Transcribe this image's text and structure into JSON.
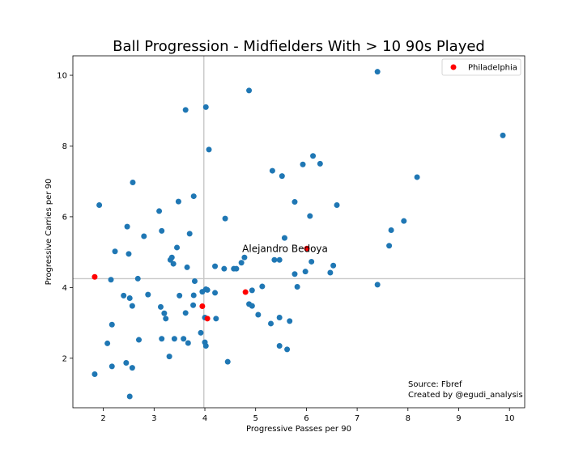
{
  "chart_data": {
    "type": "scatter",
    "title": "Ball Progression - Midfielders With > 10 90s Played",
    "xlabel": "Progressive Passes per 90",
    "ylabel": "Progressive Carries per 90",
    "xlim": [
      1.4,
      10.3
    ],
    "ylim": [
      0.6,
      10.55
    ],
    "xticks": [
      2,
      3,
      4,
      5,
      6,
      7,
      8,
      9,
      10
    ],
    "yticks": [
      2,
      4,
      6,
      8,
      10
    ],
    "grid": false,
    "reference_lines": {
      "x": 3.98,
      "y": 4.25
    },
    "legend": {
      "position": "top-right",
      "entries": [
        "Philadelphia"
      ]
    },
    "colors": {
      "others": "#1f77b4",
      "philadelphia": "#ff0000",
      "reference_line": "#c8c8c8"
    },
    "annotation": {
      "text": "Alejandro Bedoya",
      "x": 6.01,
      "y": 5.1
    },
    "source_lines": [
      "Source: Fbref",
      "Created by @egudi_analysis"
    ],
    "series": [
      {
        "points": [
          [
            1.92,
            6.33
          ],
          [
            2.15,
            4.22
          ],
          [
            2.23,
            5.02
          ],
          [
            2.47,
            5.72
          ],
          [
            2.5,
            4.95
          ],
          [
            2.58,
            6.97
          ],
          [
            2.8,
            5.45
          ],
          [
            2.68,
            4.25
          ],
          [
            3.1,
            6.16
          ],
          [
            3.15,
            5.6
          ],
          [
            3.32,
            4.78
          ],
          [
            3.35,
            4.85
          ],
          [
            3.38,
            4.67
          ],
          [
            3.45,
            5.13
          ],
          [
            3.48,
            6.43
          ],
          [
            3.7,
            5.52
          ],
          [
            3.78,
            6.58
          ],
          [
            3.65,
            4.57
          ],
          [
            3.62,
            9.02
          ],
          [
            4.02,
            9.1
          ],
          [
            4.08,
            7.9
          ],
          [
            4.4,
            5.95
          ],
          [
            4.2,
            4.6
          ],
          [
            4.38,
            4.53
          ],
          [
            4.57,
            4.53
          ],
          [
            4.62,
            4.53
          ],
          [
            4.72,
            4.7
          ],
          [
            4.78,
            4.85
          ],
          [
            4.87,
            9.57
          ],
          [
            5.33,
            7.3
          ],
          [
            5.52,
            7.15
          ],
          [
            5.37,
            4.78
          ],
          [
            5.47,
            4.78
          ],
          [
            5.57,
            5.4
          ],
          [
            5.77,
            6.42
          ],
          [
            5.93,
            7.48
          ],
          [
            6.07,
            6.02
          ],
          [
            6.13,
            7.72
          ],
          [
            6.27,
            7.5
          ],
          [
            6.1,
            4.73
          ],
          [
            5.98,
            4.45
          ],
          [
            5.77,
            4.38
          ],
          [
            5.82,
            4.02
          ],
          [
            6.47,
            4.42
          ],
          [
            6.53,
            4.62
          ],
          [
            6.6,
            6.33
          ],
          [
            7.4,
            10.1
          ],
          [
            7.4,
            4.08
          ],
          [
            7.63,
            5.18
          ],
          [
            7.67,
            5.62
          ],
          [
            7.92,
            5.88
          ],
          [
            8.18,
            7.12
          ],
          [
            9.87,
            8.3
          ],
          [
            2.4,
            3.77
          ],
          [
            2.52,
            3.7
          ],
          [
            2.57,
            3.48
          ],
          [
            2.88,
            3.8
          ],
          [
            3.13,
            3.45
          ],
          [
            3.2,
            3.27
          ],
          [
            3.23,
            3.12
          ],
          [
            3.5,
            3.77
          ],
          [
            3.62,
            3.28
          ],
          [
            3.78,
            3.78
          ],
          [
            3.8,
            4.18
          ],
          [
            3.77,
            3.5
          ],
          [
            3.95,
            3.88
          ],
          [
            4.02,
            3.95
          ],
          [
            4.05,
            3.93
          ],
          [
            4.2,
            3.85
          ],
          [
            4.0,
            3.15
          ],
          [
            4.22,
            3.12
          ],
          [
            3.92,
            2.72
          ],
          [
            4.0,
            2.45
          ],
          [
            4.02,
            2.35
          ],
          [
            3.58,
            2.55
          ],
          [
            3.67,
            2.43
          ],
          [
            3.4,
            2.55
          ],
          [
            3.15,
            2.55
          ],
          [
            3.3,
            2.05
          ],
          [
            2.7,
            2.52
          ],
          [
            2.17,
            2.95
          ],
          [
            2.08,
            2.42
          ],
          [
            2.45,
            1.87
          ],
          [
            2.57,
            1.73
          ],
          [
            2.17,
            1.77
          ],
          [
            1.83,
            1.55
          ],
          [
            2.52,
            0.92
          ],
          [
            4.45,
            1.9
          ],
          [
            4.87,
            3.53
          ],
          [
            4.93,
            3.48
          ],
          [
            4.93,
            3.92
          ],
          [
            5.13,
            4.03
          ],
          [
            5.05,
            3.23
          ],
          [
            5.3,
            2.98
          ],
          [
            5.47,
            3.15
          ],
          [
            5.67,
            3.05
          ],
          [
            5.47,
            2.35
          ],
          [
            5.62,
            2.25
          ]
        ]
      },
      {
        "name": "Philadelphia",
        "points": [
          [
            1.83,
            4.3
          ],
          [
            3.95,
            3.47
          ],
          [
            4.05,
            3.12
          ],
          [
            4.8,
            3.87
          ],
          [
            6.01,
            5.1
          ]
        ]
      }
    ]
  }
}
